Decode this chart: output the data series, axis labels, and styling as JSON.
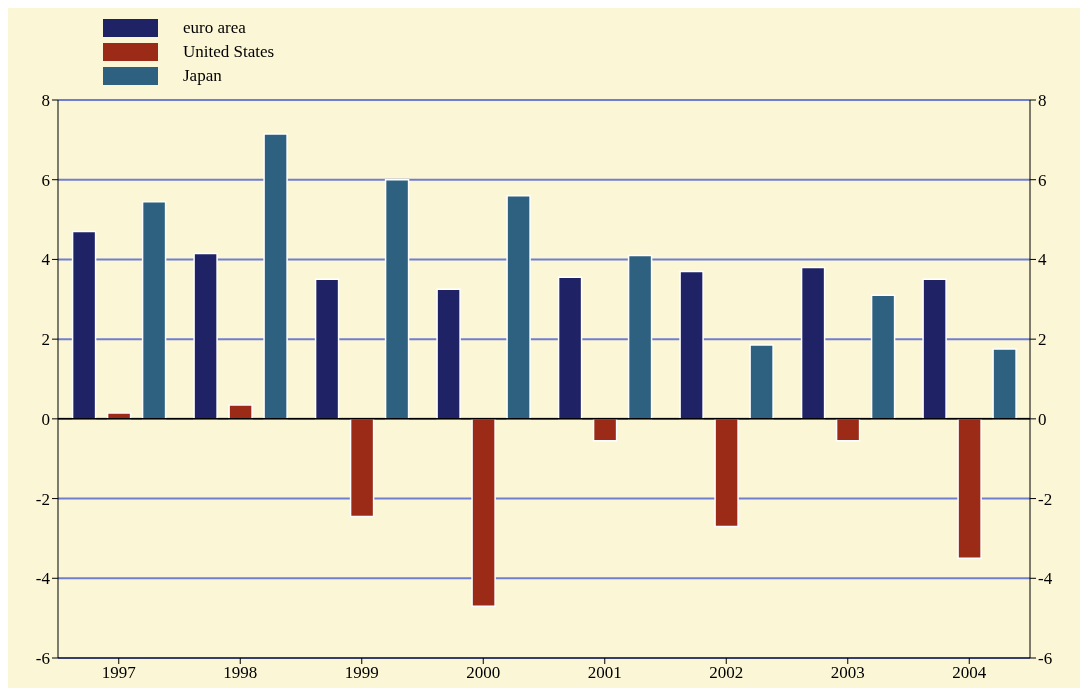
{
  "chart_data": {
    "type": "bar",
    "categories": [
      "1997",
      "1998",
      "1999",
      "2000",
      "2001",
      "2002",
      "2003",
      "2004"
    ],
    "series": [
      {
        "name": "euro area",
        "color": "#1f2366",
        "values": [
          4.7,
          4.15,
          3.5,
          3.25,
          3.55,
          3.7,
          3.8,
          3.5
        ]
      },
      {
        "name": "United States",
        "color": "#9b2a16",
        "values": [
          0.15,
          0.35,
          -2.45,
          -4.7,
          -0.55,
          -2.7,
          -0.55,
          -3.5
        ]
      },
      {
        "name": "Japan",
        "color": "#2e6180",
        "values": [
          5.45,
          7.15,
          6.0,
          5.6,
          4.1,
          1.85,
          3.1,
          1.75
        ]
      }
    ],
    "ylim": [
      -6,
      8
    ],
    "yticks": [
      -6,
      -4,
      -2,
      0,
      2,
      4,
      6,
      8
    ],
    "y2lim": [
      -6,
      8
    ],
    "y2ticks": [
      -6,
      -4,
      -2,
      0,
      2,
      4,
      6,
      8
    ],
    "grid": "y",
    "legend": "top left"
  }
}
